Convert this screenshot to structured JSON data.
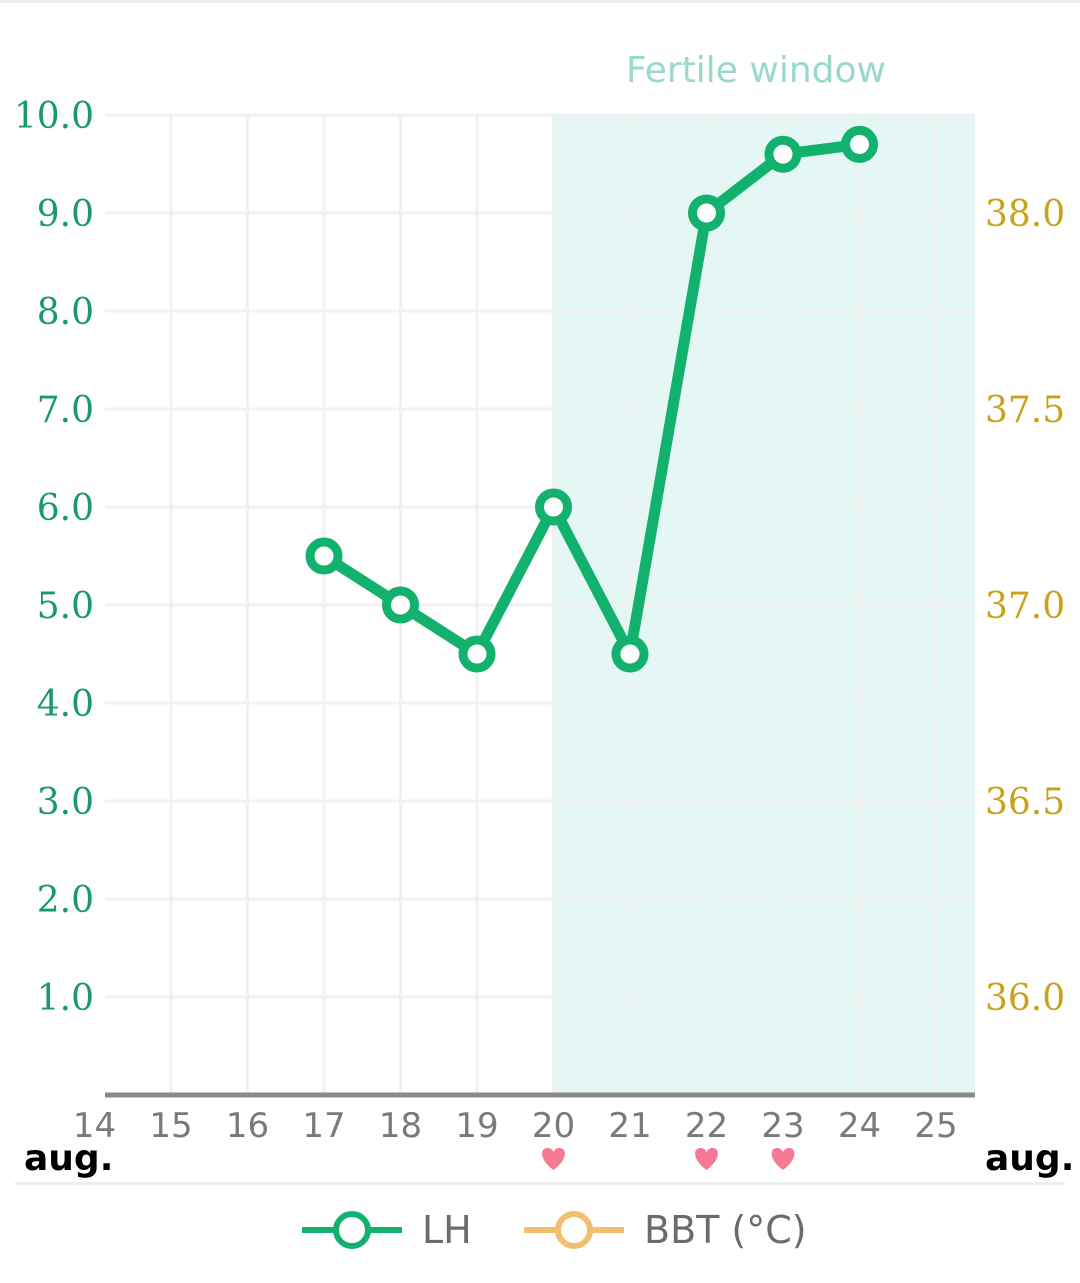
{
  "chart_data": {
    "type": "line",
    "fertile_window": {
      "label": "Fertile window",
      "start": "20",
      "end": "25",
      "color": "#e4f7f4"
    },
    "x": {
      "tick_labels": [
        "14",
        "15",
        "16",
        "17",
        "18",
        "19",
        "20",
        "21",
        "22",
        "23",
        "24",
        "25"
      ],
      "month_label_left": "aug.",
      "month_label_right": "aug."
    },
    "y_left": {
      "label": "",
      "range": [
        0,
        10
      ],
      "ticks": [
        "1.0",
        "2.0",
        "3.0",
        "4.0",
        "5.0",
        "6.0",
        "7.0",
        "8.0",
        "9.0",
        "10.0"
      ],
      "color": "#1a9a6a"
    },
    "y_right": {
      "label": "",
      "range": [
        35.75,
        38.25
      ],
      "ticks": [
        "36.0",
        "36.5",
        "37.0",
        "37.5",
        "38.0"
      ],
      "color": "#c9a21a"
    },
    "series": [
      {
        "name": "LH",
        "axis": "left",
        "color": "#12b26e",
        "points": [
          {
            "x": "17",
            "y": 5.5
          },
          {
            "x": "18",
            "y": 5.0
          },
          {
            "x": "19",
            "y": 4.5
          },
          {
            "x": "20",
            "y": 6.0
          },
          {
            "x": "21",
            "y": 4.5
          },
          {
            "x": "22",
            "y": 9.0
          },
          {
            "x": "23",
            "y": 9.6
          },
          {
            "x": "24",
            "y": 9.7
          }
        ]
      },
      {
        "name": "BBT (°C)",
        "axis": "right",
        "color": "#f3be6e",
        "points": []
      }
    ],
    "intercourse_days": [
      "20",
      "22",
      "23"
    ],
    "intercourse_icon": "heart-icon",
    "heart_color": "#f47a93",
    "grid": true
  }
}
